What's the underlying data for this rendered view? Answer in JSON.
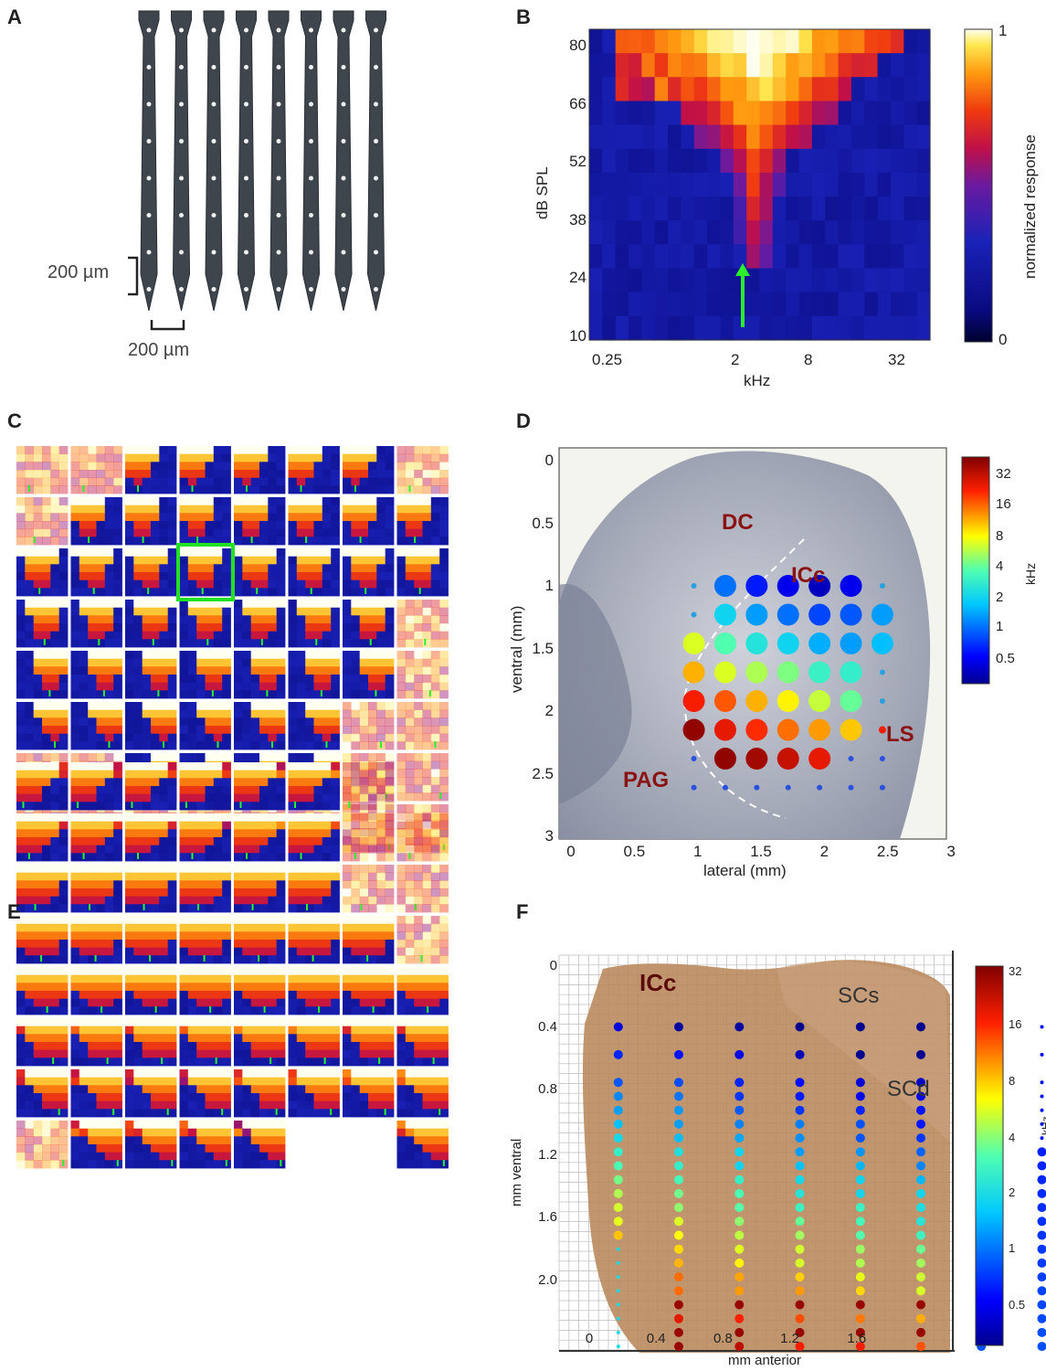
{
  "panels": {
    "A": {
      "label": "A",
      "scale_vertical": "200 µm",
      "scale_horizontal": "200 µm",
      "shank_count": 8,
      "sites_per_shank": 8
    },
    "B": {
      "label": "B",
      "ylabel": "dB SPL",
      "xlabel": "kHz",
      "yticks": [
        "80",
        "66",
        "52",
        "38",
        "24",
        "10"
      ],
      "xticks": [
        "0.25",
        "2",
        "8",
        "32"
      ],
      "colorbar_label": "normalized response",
      "colorbar_ticks": [
        "1",
        "0"
      ]
    },
    "C": {
      "label": "C"
    },
    "D": {
      "label": "D",
      "xlabel": "lateral (mm)",
      "ylabel": "ventral (mm)",
      "xticks": [
        "0",
        "0.5",
        "1",
        "1.5",
        "2",
        "2.5",
        "3"
      ],
      "yticks": [
        "0",
        "0.5",
        "1",
        "1.5",
        "2",
        "2.5",
        "3"
      ],
      "regions": [
        "DC",
        "ICc",
        "LS",
        "PAG"
      ],
      "colorbar_unit": "kHz",
      "colorbar_ticks": [
        "32",
        "16",
        "8",
        "4",
        "2",
        "1",
        "0.5"
      ]
    },
    "E": {
      "label": "E"
    },
    "F": {
      "label": "F",
      "xlabel": "mm anterior",
      "ylabel": "mm ventral",
      "xticks": [
        "0",
        "0.4",
        "0.8",
        "1.2",
        "1.6"
      ],
      "yticks": [
        "0",
        "0.4",
        "0.8",
        "1.2",
        "1.6",
        "2.0"
      ],
      "regions": [
        "ICc",
        "SCs",
        "SCd"
      ],
      "colorbar_unit": "kHz",
      "colorbar_ticks": [
        "32",
        "16",
        "8",
        "4",
        "2",
        "1",
        "0.5"
      ]
    }
  },
  "chart_data": [
    {
      "panel": "B",
      "type": "heatmap",
      "xlabel": "kHz",
      "ylabel": "dB SPL",
      "x_ticks": [
        0.25,
        2,
        8,
        32
      ],
      "y_ticks": [
        80,
        66,
        52,
        38,
        24,
        10
      ],
      "colorbar": "normalized response",
      "colorbar_range": [
        0,
        1
      ],
      "best_frequency_khz": 2.2,
      "threshold_db": 31
    },
    {
      "panel": "D",
      "type": "scatter",
      "xlabel": "lateral (mm)",
      "ylabel": "ventral (mm)",
      "xlim": [
        0,
        3
      ],
      "ylim": [
        3,
        0
      ],
      "colorbar_unit": "kHz",
      "colorbar_ticks": [
        32,
        16,
        8,
        4,
        2,
        1,
        0.5
      ]
    },
    {
      "panel": "F",
      "type": "scatter",
      "xlabel": "mm anterior",
      "ylabel": "mm ventral",
      "xlim": [
        0,
        1.6
      ],
      "ylim": [
        2.0,
        0
      ],
      "colorbar_unit": "kHz",
      "colorbar_ticks": [
        32,
        16,
        8,
        4,
        2,
        1,
        0.5
      ]
    }
  ]
}
